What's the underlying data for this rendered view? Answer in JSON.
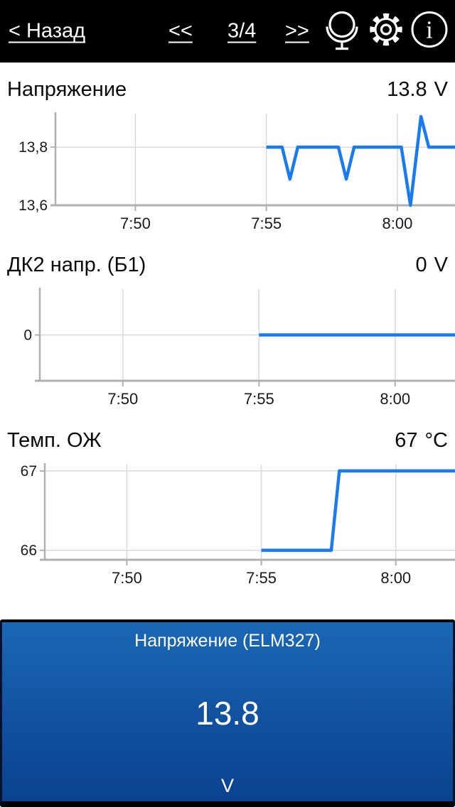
{
  "nav": {
    "back_label": "< Назад",
    "prev_label": "<<",
    "page_indicator": "3/4",
    "next_label": ">>"
  },
  "icons": [
    {
      "name": "hud-mirror-icon"
    },
    {
      "name": "settings-gear-icon"
    },
    {
      "name": "info-icon",
      "glyph": "i"
    }
  ],
  "colors": {
    "line": "#1a7af0",
    "grid": "#d9d9d9",
    "axis": "#b0b0b0",
    "tick_text": "#1a1a1a",
    "bar_bg": "#000000",
    "panel_top": "#1b68b6",
    "panel_bottom": "#0a428f"
  },
  "chart_data": [
    {
      "type": "line",
      "title": "Напряжение",
      "value": "13.8",
      "unit": "V",
      "margin_left": 78,
      "height": 185,
      "xlim": [
        466.95,
        482.2
      ],
      "ylim": [
        13.6,
        13.915
      ],
      "xticks": [
        {
          "t": 470,
          "label": "7:50"
        },
        {
          "t": 475,
          "label": "7:55"
        },
        {
          "t": 480,
          "label": "8:00"
        }
      ],
      "yticks": [
        {
          "v": 13.8,
          "label": "13,8"
        },
        {
          "v": 13.6,
          "label": "13,6"
        }
      ],
      "points": [
        [
          475.0,
          13.8
        ],
        [
          475.6,
          13.8
        ],
        [
          475.9,
          13.69
        ],
        [
          476.2,
          13.8
        ],
        [
          477.75,
          13.8
        ],
        [
          478.05,
          13.69
        ],
        [
          478.35,
          13.8
        ],
        [
          480.15,
          13.8
        ],
        [
          480.5,
          13.6
        ],
        [
          480.9,
          13.905
        ],
        [
          481.2,
          13.8
        ],
        [
          482.2,
          13.8
        ]
      ]
    },
    {
      "type": "line",
      "title": "ДК2 напр. (Б1)",
      "value": "0",
      "unit": "V",
      "margin_left": 56,
      "height": 185,
      "xlim": [
        466.95,
        482.2
      ],
      "ylim": [
        -0.5,
        0.5
      ],
      "xticks": [
        {
          "t": 470,
          "label": "7:50"
        },
        {
          "t": 475,
          "label": "7:55"
        },
        {
          "t": 480,
          "label": "8:00"
        }
      ],
      "yticks": [
        {
          "v": 0,
          "label": "0"
        }
      ],
      "points": [
        [
          475.0,
          0
        ],
        [
          482.2,
          0
        ]
      ]
    },
    {
      "type": "line",
      "title": "Темп. ОЖ",
      "value": "67",
      "unit": "°C",
      "margin_left": 63,
      "height": 190,
      "xlim": [
        466.95,
        482.2
      ],
      "ylim": [
        65.88,
        67.08
      ],
      "xticks": [
        {
          "t": 470,
          "label": "7:50"
        },
        {
          "t": 475,
          "label": "7:55"
        },
        {
          "t": 480,
          "label": "8:00"
        }
      ],
      "yticks": [
        {
          "v": 67,
          "label": "67"
        },
        {
          "v": 66,
          "label": "66"
        }
      ],
      "points": [
        [
          475.0,
          66
        ],
        [
          477.6,
          66
        ],
        [
          477.9,
          67
        ],
        [
          482.2,
          67
        ]
      ]
    }
  ],
  "panel": {
    "title": "Напряжение (ELM327)",
    "value": "13.8",
    "unit": "V"
  }
}
